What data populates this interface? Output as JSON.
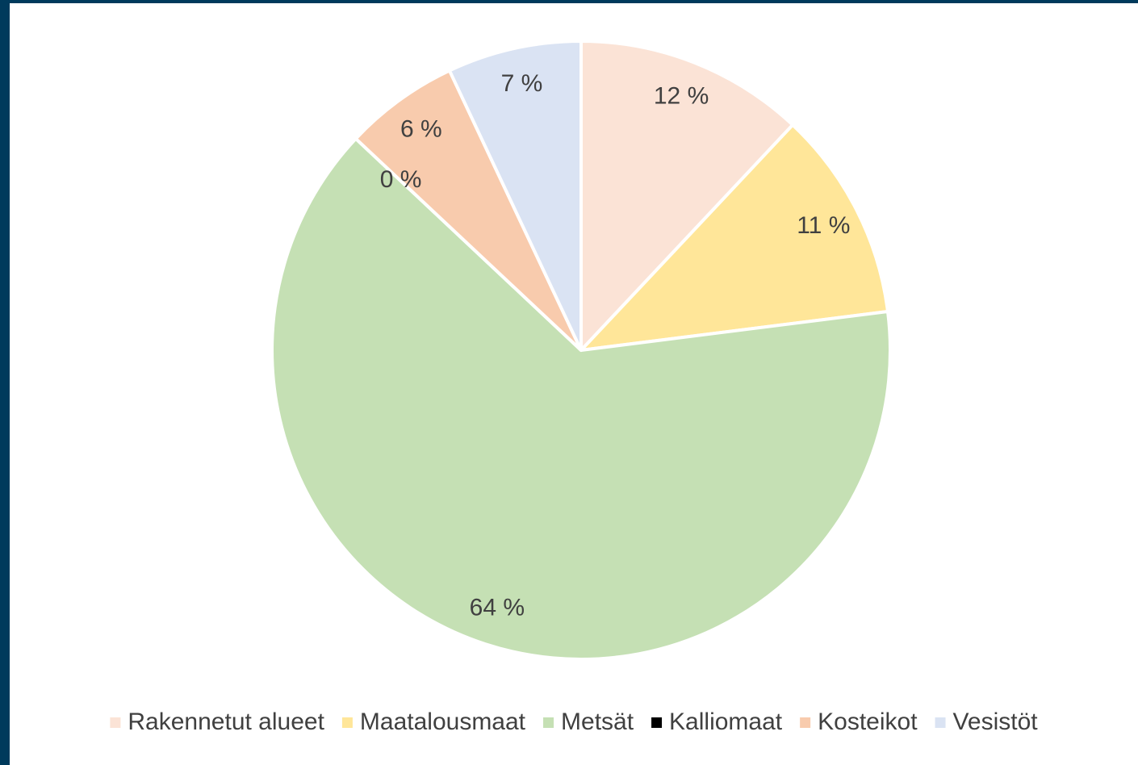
{
  "chart_data": {
    "type": "pie",
    "categories": [
      "Rakennetut alueet",
      "Maatalousmaat",
      "Metsät",
      "Kalliomaat",
      "Kosteikot",
      "Vesistöt"
    ],
    "values": [
      12,
      11,
      64,
      0,
      6,
      7
    ],
    "value_labels": [
      "12 %",
      "11 %",
      "64 %",
      "0 %",
      "6 %",
      "7 %"
    ],
    "colors": [
      "#fbe3d6",
      "#ffe699",
      "#c5e0b4",
      "#000000",
      "#f8cbad",
      "#dae3f3"
    ],
    "legend": "bottom"
  }
}
